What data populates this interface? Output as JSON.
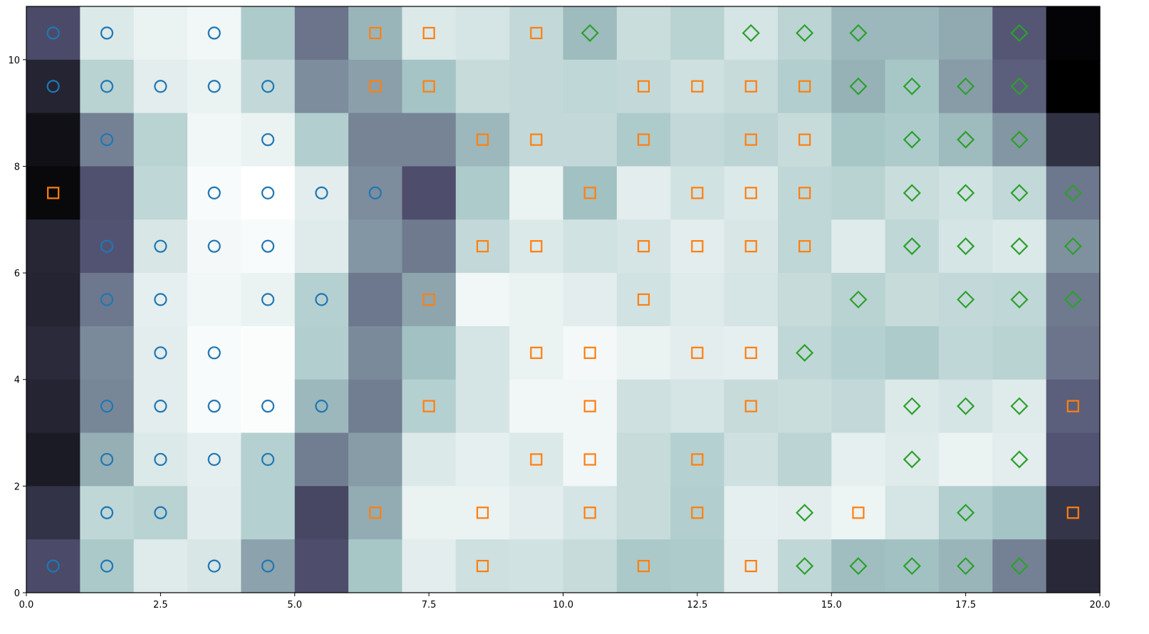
{
  "chart_data": {
    "type": "heatmap",
    "title": "",
    "xlabel": "",
    "ylabel": "",
    "xlim": [
      0,
      20
    ],
    "ylim": [
      0,
      11
    ],
    "grid": false,
    "x_ticks": [
      0,
      2.5,
      5,
      7.5,
      10,
      12.5,
      15,
      17.5,
      20
    ],
    "x_tick_labels": [
      "0.0",
      "2.5",
      "5.0",
      "7.5",
      "10.0",
      "12.5",
      "15.0",
      "17.5",
      "20.0"
    ],
    "y_ticks": [
      0,
      2,
      4,
      6,
      8,
      10
    ],
    "y_tick_labels": [
      "0",
      "2",
      "4",
      "6",
      "8",
      "10"
    ],
    "colormap": "bone",
    "cell_value_note": "row 0 = top row (y 10-11); values are darkness 0 (white) to 1 (black)",
    "cells": [
      [
        0.66,
        0.1,
        0.06,
        0.04,
        0.23,
        0.52,
        0.31,
        0.1,
        0.12,
        0.17,
        0.29,
        0.15,
        0.2,
        0.12,
        0.19,
        0.3,
        0.3,
        0.35,
        0.62,
        0.98
      ],
      [
        0.84,
        0.2,
        0.08,
        0.06,
        0.17,
        0.44,
        0.38,
        0.26,
        0.16,
        0.17,
        0.18,
        0.17,
        0.14,
        0.16,
        0.22,
        0.32,
        0.25,
        0.39,
        0.59,
        1.0
      ],
      [
        0.93,
        0.48,
        0.2,
        0.04,
        0.06,
        0.22,
        0.47,
        0.47,
        0.3,
        0.17,
        0.17,
        0.23,
        0.17,
        0.19,
        0.16,
        0.25,
        0.23,
        0.29,
        0.41,
        0.78
      ],
      [
        0.96,
        0.64,
        0.18,
        0.02,
        0.0,
        0.08,
        0.44,
        0.65,
        0.23,
        0.06,
        0.27,
        0.08,
        0.13,
        0.1,
        0.18,
        0.2,
        0.15,
        0.13,
        0.17,
        0.51
      ],
      [
        0.83,
        0.63,
        0.11,
        0.03,
        0.02,
        0.09,
        0.41,
        0.5,
        0.17,
        0.1,
        0.13,
        0.12,
        0.08,
        0.11,
        0.18,
        0.09,
        0.18,
        0.12,
        0.1,
        0.43
      ],
      [
        0.84,
        0.51,
        0.07,
        0.04,
        0.06,
        0.21,
        0.51,
        0.36,
        0.04,
        0.06,
        0.08,
        0.13,
        0.09,
        0.12,
        0.16,
        0.2,
        0.16,
        0.17,
        0.18,
        0.5
      ],
      [
        0.81,
        0.45,
        0.08,
        0.02,
        0.01,
        0.22,
        0.45,
        0.27,
        0.12,
        0.06,
        0.03,
        0.06,
        0.08,
        0.07,
        0.18,
        0.21,
        0.23,
        0.18,
        0.2,
        0.52
      ],
      [
        0.84,
        0.46,
        0.08,
        0.02,
        0.01,
        0.3,
        0.49,
        0.21,
        0.12,
        0.04,
        0.04,
        0.14,
        0.12,
        0.16,
        0.15,
        0.17,
        0.1,
        0.12,
        0.09,
        0.59
      ],
      [
        0.88,
        0.33,
        0.1,
        0.07,
        0.21,
        0.49,
        0.39,
        0.1,
        0.07,
        0.1,
        0.04,
        0.16,
        0.21,
        0.14,
        0.19,
        0.07,
        0.09,
        0.06,
        0.08,
        0.63
      ],
      [
        0.77,
        0.18,
        0.2,
        0.08,
        0.21,
        0.68,
        0.34,
        0.06,
        0.06,
        0.08,
        0.12,
        0.16,
        0.22,
        0.07,
        0.08,
        0.05,
        0.12,
        0.22,
        0.26,
        0.76
      ],
      [
        0.66,
        0.24,
        0.09,
        0.11,
        0.37,
        0.65,
        0.25,
        0.08,
        0.14,
        0.13,
        0.16,
        0.24,
        0.23,
        0.08,
        0.18,
        0.28,
        0.27,
        0.31,
        0.48,
        0.82
      ]
    ],
    "series": [
      {
        "name": "circle",
        "marker": "circle",
        "color": "#1f77b4",
        "points": [
          [
            0.5,
            10.5
          ],
          [
            1.5,
            10.5
          ],
          [
            3.5,
            10.5
          ],
          [
            0.5,
            9.5
          ],
          [
            1.5,
            9.5
          ],
          [
            2.5,
            9.5
          ],
          [
            3.5,
            9.5
          ],
          [
            4.5,
            9.5
          ],
          [
            1.5,
            8.5
          ],
          [
            4.5,
            8.5
          ],
          [
            3.5,
            7.5
          ],
          [
            4.5,
            7.5
          ],
          [
            5.5,
            7.5
          ],
          [
            6.5,
            7.5
          ],
          [
            1.5,
            6.5
          ],
          [
            2.5,
            6.5
          ],
          [
            3.5,
            6.5
          ],
          [
            4.5,
            6.5
          ],
          [
            1.5,
            5.5
          ],
          [
            2.5,
            5.5
          ],
          [
            4.5,
            5.5
          ],
          [
            5.5,
            5.5
          ],
          [
            2.5,
            4.5
          ],
          [
            3.5,
            4.5
          ],
          [
            1.5,
            3.5
          ],
          [
            2.5,
            3.5
          ],
          [
            3.5,
            3.5
          ],
          [
            4.5,
            3.5
          ],
          [
            5.5,
            3.5
          ],
          [
            1.5,
            2.5
          ],
          [
            2.5,
            2.5
          ],
          [
            3.5,
            2.5
          ],
          [
            4.5,
            2.5
          ],
          [
            1.5,
            1.5
          ],
          [
            2.5,
            1.5
          ],
          [
            0.5,
            0.5
          ],
          [
            1.5,
            0.5
          ],
          [
            3.5,
            0.5
          ],
          [
            4.5,
            0.5
          ]
        ]
      },
      {
        "name": "square",
        "marker": "square",
        "color": "#ff7f0e",
        "points": [
          [
            6.5,
            10.5
          ],
          [
            7.5,
            10.5
          ],
          [
            9.5,
            10.5
          ],
          [
            6.5,
            9.5
          ],
          [
            7.5,
            9.5
          ],
          [
            11.5,
            9.5
          ],
          [
            12.5,
            9.5
          ],
          [
            13.5,
            9.5
          ],
          [
            14.5,
            9.5
          ],
          [
            8.5,
            8.5
          ],
          [
            9.5,
            8.5
          ],
          [
            11.5,
            8.5
          ],
          [
            13.5,
            8.5
          ],
          [
            14.5,
            8.5
          ],
          [
            0.5,
            7.5
          ],
          [
            10.5,
            7.5
          ],
          [
            12.5,
            7.5
          ],
          [
            13.5,
            7.5
          ],
          [
            14.5,
            7.5
          ],
          [
            8.5,
            6.5
          ],
          [
            9.5,
            6.5
          ],
          [
            11.5,
            6.5
          ],
          [
            12.5,
            6.5
          ],
          [
            13.5,
            6.5
          ],
          [
            14.5,
            6.5
          ],
          [
            7.5,
            5.5
          ],
          [
            11.5,
            5.5
          ],
          [
            9.5,
            4.5
          ],
          [
            10.5,
            4.5
          ],
          [
            12.5,
            4.5
          ],
          [
            13.5,
            4.5
          ],
          [
            7.5,
            3.5
          ],
          [
            10.5,
            3.5
          ],
          [
            13.5,
            3.5
          ],
          [
            19.5,
            3.5
          ],
          [
            9.5,
            2.5
          ],
          [
            10.5,
            2.5
          ],
          [
            12.5,
            2.5
          ],
          [
            6.5,
            1.5
          ],
          [
            8.5,
            1.5
          ],
          [
            10.5,
            1.5
          ],
          [
            12.5,
            1.5
          ],
          [
            15.5,
            1.5
          ],
          [
            19.5,
            1.5
          ],
          [
            8.5,
            0.5
          ],
          [
            11.5,
            0.5
          ],
          [
            13.5,
            0.5
          ]
        ]
      },
      {
        "name": "diamond",
        "marker": "diamond",
        "color": "#2ca02c",
        "points": [
          [
            10.5,
            10.5
          ],
          [
            13.5,
            10.5
          ],
          [
            14.5,
            10.5
          ],
          [
            15.5,
            10.5
          ],
          [
            18.5,
            10.5
          ],
          [
            15.5,
            9.5
          ],
          [
            16.5,
            9.5
          ],
          [
            17.5,
            9.5
          ],
          [
            18.5,
            9.5
          ],
          [
            16.5,
            8.5
          ],
          [
            17.5,
            8.5
          ],
          [
            18.5,
            8.5
          ],
          [
            16.5,
            7.5
          ],
          [
            17.5,
            7.5
          ],
          [
            18.5,
            7.5
          ],
          [
            19.5,
            7.5
          ],
          [
            16.5,
            6.5
          ],
          [
            17.5,
            6.5
          ],
          [
            18.5,
            6.5
          ],
          [
            19.5,
            6.5
          ],
          [
            15.5,
            5.5
          ],
          [
            17.5,
            5.5
          ],
          [
            18.5,
            5.5
          ],
          [
            19.5,
            5.5
          ],
          [
            14.5,
            4.5
          ],
          [
            16.5,
            3.5
          ],
          [
            17.5,
            3.5
          ],
          [
            18.5,
            3.5
          ],
          [
            16.5,
            2.5
          ],
          [
            18.5,
            2.5
          ],
          [
            14.5,
            1.5
          ],
          [
            17.5,
            1.5
          ],
          [
            14.5,
            0.5
          ],
          [
            15.5,
            0.5
          ],
          [
            16.5,
            0.5
          ],
          [
            17.5,
            0.5
          ],
          [
            18.5,
            0.5
          ]
        ]
      }
    ]
  }
}
